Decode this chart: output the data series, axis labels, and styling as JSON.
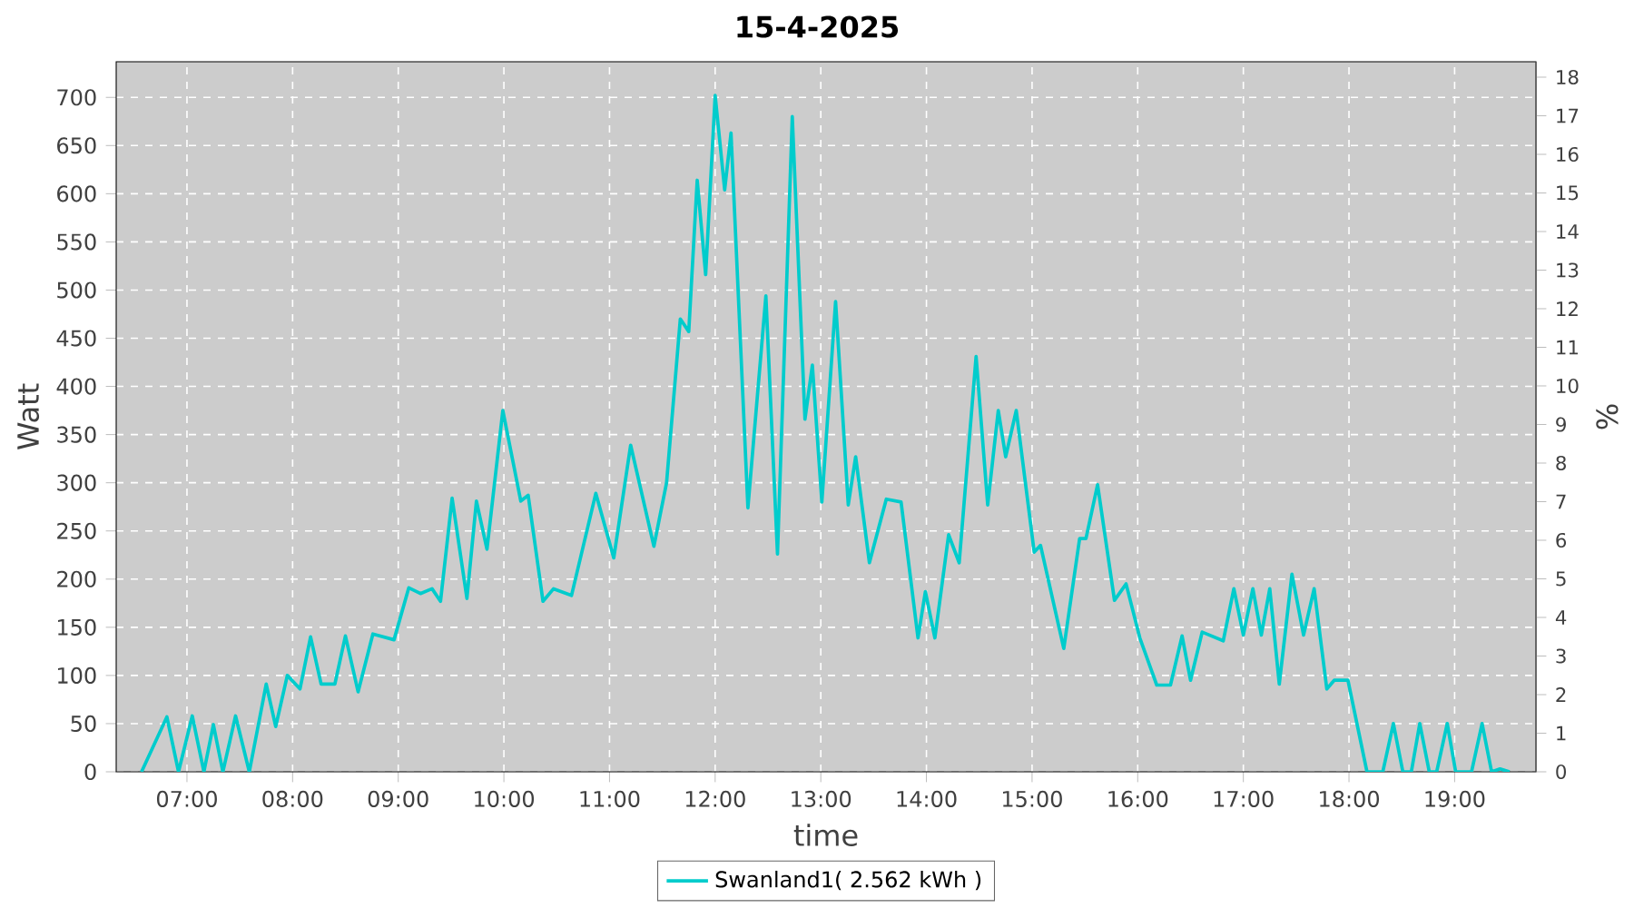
{
  "chart_data": {
    "type": "line",
    "title": "15-4-2025",
    "xlabel": "time",
    "ylabel": "Watt",
    "y2label": "%",
    "xlim": [
      6.33,
      19.77
    ],
    "ylim": [
      0,
      737
    ],
    "y2lim": [
      0,
      18.4
    ],
    "xticks": [
      {
        "value": 7,
        "label": "07:00"
      },
      {
        "value": 8,
        "label": "08:00"
      },
      {
        "value": 9,
        "label": "09:00"
      },
      {
        "value": 10,
        "label": "10:00"
      },
      {
        "value": 11,
        "label": "11:00"
      },
      {
        "value": 12,
        "label": "12:00"
      },
      {
        "value": 13,
        "label": "13:00"
      },
      {
        "value": 14,
        "label": "14:00"
      },
      {
        "value": 15,
        "label": "15:00"
      },
      {
        "value": 16,
        "label": "16:00"
      },
      {
        "value": 17,
        "label": "17:00"
      },
      {
        "value": 18,
        "label": "18:00"
      },
      {
        "value": 19,
        "label": "19:00"
      }
    ],
    "yticks": [
      0,
      50,
      100,
      150,
      200,
      250,
      300,
      350,
      400,
      450,
      500,
      550,
      600,
      650,
      700
    ],
    "y2ticks": [
      0,
      1,
      2,
      3,
      4,
      5,
      6,
      7,
      8,
      9,
      10,
      11,
      12,
      13,
      14,
      15,
      16,
      17,
      18
    ],
    "grid": true,
    "legend": "bottom",
    "marker": "none",
    "line_style": "solid",
    "series": [
      {
        "name": "Swanland1( 2.562 kWh )",
        "color": "#00cccc",
        "x": [
          6.57,
          6.81,
          6.92,
          7.05,
          7.16,
          7.25,
          7.34,
          7.46,
          7.59,
          7.75,
          7.84,
          7.95,
          8.07,
          8.17,
          8.27,
          8.4,
          8.5,
          8.62,
          8.76,
          8.96,
          9.1,
          9.21,
          9.32,
          9.4,
          9.51,
          9.65,
          9.74,
          9.84,
          9.99,
          10.16,
          10.23,
          10.37,
          10.47,
          10.64,
          10.87,
          11.04,
          11.2,
          11.42,
          11.54,
          11.67,
          11.75,
          11.83,
          11.91,
          12.0,
          12.09,
          12.15,
          12.31,
          12.48,
          12.59,
          12.73,
          12.85,
          12.92,
          13.01,
          13.14,
          13.26,
          13.33,
          13.46,
          13.62,
          13.76,
          13.92,
          13.99,
          14.08,
          14.21,
          14.31,
          14.47,
          14.58,
          14.68,
          14.75,
          14.85,
          15.02,
          15.08,
          15.3,
          15.45,
          15.51,
          15.62,
          15.78,
          15.89,
          16.02,
          16.18,
          16.31,
          16.42,
          16.5,
          16.61,
          16.81,
          16.91,
          17.0,
          17.09,
          17.17,
          17.25,
          17.34,
          17.46,
          17.57,
          17.67,
          17.79,
          17.86,
          17.99,
          18.17,
          18.32,
          18.42,
          18.51,
          18.59,
          18.67,
          18.76,
          18.83,
          18.93,
          19.01,
          19.16,
          19.26,
          19.35,
          19.43,
          19.52
        ],
        "values": [
          0,
          57,
          0,
          58,
          0,
          49,
          0,
          58,
          0,
          91,
          47,
          100,
          86,
          140,
          91,
          91,
          141,
          83,
          143,
          137,
          191,
          185,
          190,
          177,
          284,
          180,
          281,
          231,
          375,
          281,
          287,
          177,
          190,
          183,
          289,
          222,
          339,
          234,
          300,
          470,
          457,
          614,
          516,
          702,
          604,
          663,
          274,
          494,
          226,
          680,
          366,
          422,
          280,
          488,
          277,
          327,
          217,
          283,
          280,
          139,
          187,
          139,
          246,
          217,
          431,
          277,
          375,
          327,
          375,
          228,
          235,
          128,
          242,
          242,
          298,
          178,
          195,
          139,
          90,
          90,
          141,
          95,
          145,
          136,
          190,
          142,
          190,
          142,
          190,
          91,
          205,
          142,
          190,
          86,
          95,
          95,
          0,
          0,
          50,
          0,
          0,
          50,
          0,
          0,
          50,
          0,
          0,
          50,
          0,
          3,
          0
        ]
      }
    ]
  }
}
